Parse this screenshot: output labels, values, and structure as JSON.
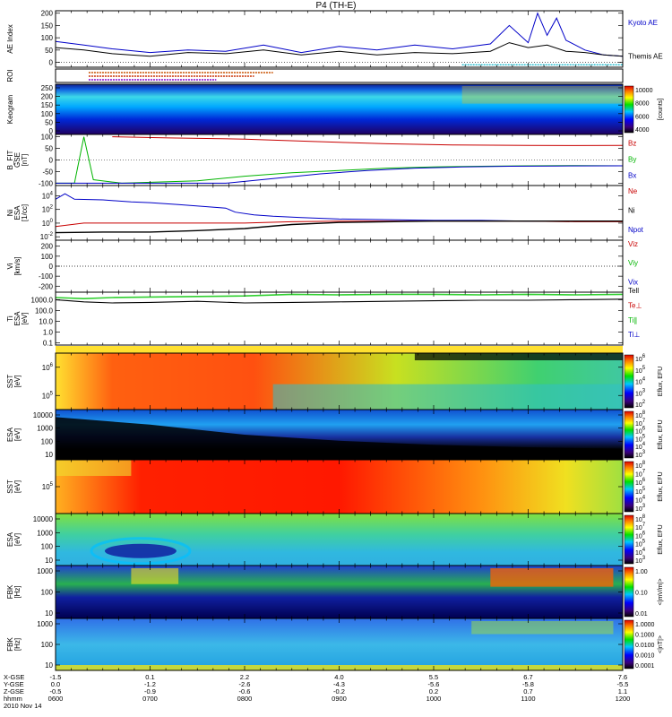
{
  "chart_data": {
    "type": "multi-panel",
    "title": "P4 (TH-E)",
    "date": "2010 Nov 14",
    "x_time_ticks": [
      "0600",
      "0700",
      "0800",
      "0900",
      "1000",
      "1100",
      "1200"
    ],
    "ephemeris": {
      "labels": [
        "X-GSE",
        "Y-GSE",
        "Z-GSE",
        "hhmm"
      ],
      "x_gse": [
        "-1.5",
        "0.1",
        "2.2",
        "4.0",
        "5.5",
        "6.7",
        "7.6"
      ],
      "y_gse": [
        "0.0",
        "-1.2",
        "-2.6",
        "-4.3",
        "-5.6",
        "-5.8",
        "-5.5"
      ],
      "z_gse": [
        "-0.5",
        "-0.9",
        "-0.6",
        "-0.2",
        "0.2",
        "0.7",
        "1.1"
      ]
    },
    "panels": [
      {
        "id": "ae",
        "ylabel": [
          "AE Index"
        ],
        "yticks": [
          "200",
          "150",
          "100",
          "50",
          "0"
        ],
        "ylim": [
          -20,
          210
        ],
        "legend": [
          {
            "label": "Kyoto AE",
            "color": "#0000c8"
          },
          {
            "label": "Themis AE",
            "color": "#000000"
          }
        ],
        "series": [
          {
            "name": "Kyoto AE",
            "x": [
              6.0,
              6.3,
              6.6,
              7.0,
              7.4,
              7.8,
              8.2,
              8.6,
              9.0,
              9.4,
              9.8,
              10.2,
              10.6,
              10.8,
              11.0,
              11.1,
              11.2,
              11.3,
              11.4,
              11.5,
              11.6,
              11.8,
              12.0
            ],
            "y": [
              85,
              70,
              55,
              40,
              50,
              45,
              70,
              40,
              65,
              50,
              70,
              55,
              75,
              150,
              80,
              200,
              110,
              180,
              90,
              70,
              50,
              30,
              25
            ]
          },
          {
            "name": "Themis AE",
            "x": [
              6.0,
              6.3,
              6.6,
              7.0,
              7.4,
              7.8,
              8.2,
              8.6,
              9.0,
              9.4,
              9.8,
              10.2,
              10.6,
              10.8,
              11.0,
              11.2,
              11.4,
              11.6,
              11.8,
              12.0
            ],
            "y": [
              60,
              50,
              35,
              25,
              40,
              35,
              50,
              30,
              45,
              30,
              40,
              35,
              45,
              80,
              60,
              70,
              45,
              40,
              30,
              25
            ]
          }
        ]
      },
      {
        "id": "roi",
        "ylabel": [
          "ROI"
        ]
      },
      {
        "id": "keogram",
        "ylabel": [
          "Keogram"
        ],
        "yticks": [
          "250",
          "200",
          "150",
          "100",
          "50",
          "0"
        ],
        "colorbar": {
          "ticks": [
            "10000",
            "8000",
            "6000",
            "4000"
          ],
          "label": "[counts]"
        }
      },
      {
        "id": "b",
        "ylabel": [
          "B_FIT",
          "GSE",
          "[nT]"
        ],
        "yticks": [
          "100",
          "50",
          "0",
          "-50",
          "-100"
        ],
        "ylim": [
          -110,
          110
        ],
        "legend": [
          {
            "label": "Bz",
            "color": "#c80000"
          },
          {
            "label": "By",
            "color": "#00b400"
          },
          {
            "label": "Bx",
            "color": "#0000c8"
          }
        ],
        "series": [
          {
            "name": "Bz",
            "x": [
              6.6,
              7.2,
              8.0,
              8.7,
              9.5,
              10.2,
              11.0,
              11.5,
              12.0
            ],
            "y": [
              100,
              95,
              90,
              80,
              70,
              65,
              63,
              62,
              63
            ]
          },
          {
            "name": "By",
            "x": [
              6.0,
              6.2,
              6.3,
              6.4,
              6.6,
              6.7,
              7.5,
              8.0,
              8.5,
              9.0,
              9.5,
              10.0,
              10.5,
              11.0,
              11.5,
              12.0
            ],
            "y": [
              -100,
              -100,
              100,
              -85,
              -95,
              -100,
              -90,
              -70,
              -55,
              -45,
              -35,
              -30,
              -27,
              -25,
              -24,
              -25
            ]
          },
          {
            "name": "Bx",
            "x": [
              6.0,
              6.3,
              6.6,
              7.0,
              7.8,
              8.3,
              8.8,
              9.3,
              9.8,
              10.3,
              10.8,
              11.3,
              12.0
            ],
            "y": [
              -100,
              -100,
              -100,
              -100,
              -100,
              -80,
              -60,
              -45,
              -35,
              -30,
              -27,
              -26,
              -25
            ]
          }
        ]
      },
      {
        "id": "n",
        "ylabel": [
          "Ni",
          "ESA",
          "[1/cc]"
        ],
        "yticks": [
          "10^4",
          "10^2",
          "10^0",
          "10^-2"
        ],
        "log_range": [
          -2.5,
          5.5
        ],
        "legend": [
          {
            "label": "Ne",
            "color": "#c80000"
          },
          {
            "label": "Ni",
            "color": "#000000"
          },
          {
            "label": "Npot",
            "color": "#0000c8"
          }
        ],
        "series": [
          {
            "name": "Npot",
            "x": [
              6.0,
              6.1,
              6.2,
              6.5,
              6.8,
              7.0,
              7.3,
              7.6,
              7.8,
              7.9,
              8.1,
              8.3,
              8.6,
              9.0,
              9.5,
              10.0,
              10.5,
              11.0,
              11.5,
              12.0
            ],
            "y": [
              3.5,
              4.3,
              3.5,
              3.4,
              3.1,
              3.0,
              2.7,
              2.4,
              2.2,
              1.6,
              1.2,
              1.0,
              0.8,
              0.6,
              0.5,
              0.4,
              0.4,
              0.3,
              0.3,
              0.3
            ]
          },
          {
            "name": "Ne",
            "x": [
              6.0,
              6.3,
              6.6,
              7.0,
              7.5,
              8.0,
              8.5,
              9.0,
              9.5,
              10.0,
              10.5,
              11.0,
              11.5,
              12.0
            ],
            "y": [
              -0.5,
              0,
              0,
              0,
              0,
              0,
              0.2,
              0.3,
              0.3,
              0.3,
              0.3,
              0.3,
              0.2,
              0.2
            ]
          },
          {
            "name": "Ni",
            "x": [
              6.0,
              6.5,
              7.0,
              7.5,
              8.0,
              8.5,
              9.0,
              9.5,
              10.0,
              10.5,
              11.0,
              11.5,
              12.0
            ],
            "y": [
              -1.4,
              -1.3,
              -1.3,
              -1.1,
              -0.8,
              -0.2,
              0.1,
              0.2,
              0.3,
              0.3,
              0.3,
              0.3,
              0.3
            ]
          }
        ]
      },
      {
        "id": "v",
        "ylabel": [
          "Vi",
          "[km/s]"
        ],
        "yticks": [
          "200",
          "100",
          "0",
          "-100",
          "-200"
        ],
        "ylim": [
          -260,
          260
        ],
        "legend": [
          {
            "label": "Viz",
            "color": "#c80000"
          },
          {
            "label": "Viy",
            "color": "#00b400"
          },
          {
            "label": "Vix",
            "color": "#0000c8"
          }
        ]
      },
      {
        "id": "t",
        "ylabel": [
          "Ti",
          "ESA",
          "[eV]"
        ],
        "yticks": [
          "1000.0",
          "100.0",
          "10.0",
          "1.0",
          "0.1"
        ],
        "log_range": [
          -1.2,
          3.7
        ],
        "legend": [
          {
            "label": "Tell",
            "color": "#000000"
          },
          {
            "label": "Te⊥",
            "color": "#c80000"
          },
          {
            "label": "Ti∥",
            "color": "#00b400"
          },
          {
            "label": "Ti⊥",
            "color": "#0000c8"
          }
        ],
        "series": [
          {
            "name": "Ti∥",
            "x": [
              6.0,
              6.3,
              6.6,
              7.0,
              7.5,
              8.0,
              8.5,
              9.0,
              9.5,
              10.0,
              10.5,
              11.0,
              11.5,
              12.0
            ],
            "y": [
              3.2,
              3.1,
              3.2,
              3.25,
              3.3,
              3.35,
              3.5,
              3.45,
              3.5,
              3.5,
              3.45,
              3.5,
              3.45,
              3.5
            ]
          },
          {
            "name": "Tell",
            "x": [
              6.0,
              6.3,
              6.6,
              7.0,
              7.5,
              8.0,
              8.5,
              9.0,
              9.5,
              10.0,
              10.5,
              11.0,
              11.5,
              12.0
            ],
            "y": [
              3.0,
              2.8,
              2.7,
              2.75,
              2.85,
              2.7,
              2.75,
              2.8,
              2.85,
              2.9,
              2.95,
              2.95,
              3.0,
              3.05
            ]
          }
        ]
      },
      {
        "id": "sst1",
        "ylabel": [
          "SST",
          "[eV]"
        ],
        "yticks": [
          "10^6",
          "10^5"
        ],
        "colorbar": {
          "ticks": [
            "10^6",
            "10^5",
            "10^4",
            "10^3",
            "10^2"
          ],
          "label": "Eflux, EFU"
        }
      },
      {
        "id": "esa1",
        "ylabel": [
          "ESA",
          "[eV]"
        ],
        "yticks": [
          "10000",
          "1000",
          "100",
          "10"
        ],
        "colorbar": {
          "ticks": [
            "10^8",
            "10^7",
            "10^6",
            "10^5",
            "10^4",
            "10^3"
          ],
          "label": "Eflux, EFU"
        }
      },
      {
        "id": "sst2",
        "ylabel": [
          "SST",
          "[eV]"
        ],
        "yticks": [
          "10^5"
        ],
        "colorbar": {
          "ticks": [
            "10^8",
            "10^7",
            "10^6",
            "10^5",
            "10^4",
            "10^3"
          ],
          "label": "Eflux, EFU"
        }
      },
      {
        "id": "esa2",
        "ylabel": [
          "ESA",
          "[eV]"
        ],
        "yticks": [
          "10000",
          "1000",
          "100",
          "10"
        ],
        "colorbar": {
          "ticks": [
            "10^8",
            "10^7",
            "10^6",
            "10^5",
            "10^4",
            "10^3"
          ],
          "label": "Eflux, EFU"
        }
      },
      {
        "id": "fbk1",
        "ylabel": [
          "FBK",
          "[Hz]"
        ],
        "yticks": [
          "1000",
          "100",
          "10"
        ],
        "colorbar": {
          "ticks": [
            "1.00",
            "0.10",
            "0.01"
          ],
          "label": "<|mV/m|>"
        }
      },
      {
        "id": "fbk2",
        "ylabel": [
          "FBK",
          "[Hz]"
        ],
        "yticks": [
          "1000",
          "100",
          "10"
        ],
        "colorbar": {
          "ticks": [
            "1.0000",
            "0.1000",
            "0.0100",
            "0.0010",
            "0.0001"
          ],
          "label": "<|nT|>"
        }
      }
    ]
  }
}
